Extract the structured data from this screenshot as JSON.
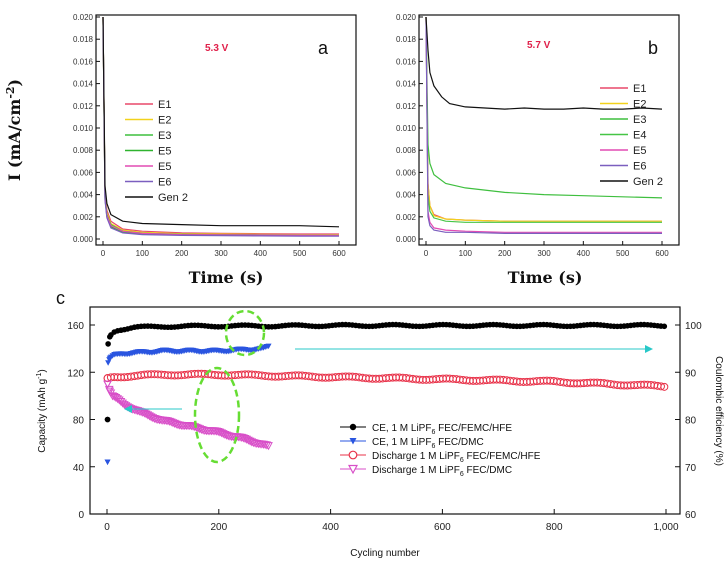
{
  "colors": {
    "E1": "#e8486a",
    "E2": "#f2d21c",
    "E3": "#3fbf3f",
    "E4": "#46c546",
    "E5": "#2fb32f",
    "E5b": "#e24bb3",
    "E6": "#7b5fbf",
    "Gen2": "#111111",
    "black": "#000000",
    "blue": "#2a55e0",
    "red": "#e8334a",
    "magenta": "#d84fc8",
    "cyan": "#28c8c8",
    "green": "#66dd33"
  },
  "chart_data": [
    {
      "id": "a",
      "type": "line",
      "panel_label": "a",
      "annotation": "5.3 V",
      "xlabel": "Time (s)",
      "ylabel": "I (mA/cm",
      "ylabel_sup": "-2",
      "ylabel_end": ")",
      "xlim": [
        0,
        600
      ],
      "ylim": [
        0,
        0.02
      ],
      "xticks": [
        0,
        100,
        200,
        300,
        400,
        500,
        600
      ],
      "yticks": [
        0.0,
        0.002,
        0.004,
        0.006,
        0.008,
        0.01,
        0.012,
        0.014,
        0.016,
        0.018,
        0.02
      ],
      "ytick_labels": [
        "0.000",
        "0.002",
        "0.004",
        "0.006",
        "0.008",
        "0.010",
        "0.012",
        "0.014",
        "0.016",
        "0.018",
        "0.020"
      ],
      "legend_position": "middle-left",
      "series": [
        {
          "name": "E1",
          "color_key": "E1",
          "x": [
            0,
            5,
            10,
            20,
            50,
            100,
            200,
            300,
            400,
            500,
            600
          ],
          "values": [
            0.02,
            0.0042,
            0.0026,
            0.0016,
            0.0009,
            0.0007,
            0.00055,
            0.0005,
            0.00048,
            0.00045,
            0.00045
          ]
        },
        {
          "name": "E2",
          "color_key": "E2",
          "x": [
            0,
            5,
            10,
            20,
            50,
            100,
            200,
            300,
            400,
            500,
            600
          ],
          "values": [
            0.02,
            0.004,
            0.0024,
            0.0014,
            0.0008,
            0.0006,
            0.00048,
            0.00045,
            0.00042,
            0.0004,
            0.0004
          ]
        },
        {
          "name": "E3",
          "color_key": "E3",
          "x": [
            0,
            5,
            10,
            20,
            50,
            100,
            200,
            300,
            400,
            500,
            600
          ],
          "values": [
            0.02,
            0.0038,
            0.0022,
            0.0013,
            0.0007,
            0.00052,
            0.00042,
            0.0004,
            0.00038,
            0.00036,
            0.00035
          ]
        },
        {
          "name": "E5",
          "color_key": "E5",
          "x": [
            0,
            5,
            10,
            20,
            50,
            100,
            200,
            300,
            400,
            500,
            600
          ],
          "values": [
            0.02,
            0.0036,
            0.002,
            0.0011,
            0.0006,
            0.00045,
            0.00038,
            0.00035,
            0.00033,
            0.00032,
            0.0003
          ]
        },
        {
          "name": "E5",
          "color_key": "E5b",
          "x": [
            0,
            5,
            10,
            20,
            50,
            100,
            200,
            300,
            400,
            500,
            600
          ],
          "values": [
            0.02,
            0.0037,
            0.0021,
            0.0012,
            0.0007,
            0.0005,
            0.0004,
            0.00038,
            0.00036,
            0.00035,
            0.00034
          ]
        },
        {
          "name": "E6",
          "color_key": "E6",
          "x": [
            0,
            5,
            10,
            20,
            50,
            100,
            200,
            300,
            400,
            500,
            600
          ],
          "values": [
            0.02,
            0.0035,
            0.0019,
            0.001,
            0.00055,
            0.0004,
            0.00032,
            0.0003,
            0.00028,
            0.00026,
            0.00025
          ]
        },
        {
          "name": "Gen 2",
          "color_key": "Gen2",
          "x": [
            0,
            5,
            10,
            20,
            50,
            100,
            200,
            300,
            400,
            500,
            600
          ],
          "values": [
            0.02,
            0.0048,
            0.0032,
            0.0022,
            0.0016,
            0.0014,
            0.0013,
            0.0012,
            0.0012,
            0.0012,
            0.0011
          ]
        }
      ]
    },
    {
      "id": "b",
      "type": "line",
      "panel_label": "b",
      "annotation": "5.7 V",
      "xlabel": "Time (s)",
      "ylabel": "",
      "xlim": [
        0,
        600
      ],
      "ylim": [
        0,
        0.02
      ],
      "xticks": [
        0,
        100,
        200,
        300,
        400,
        500,
        600
      ],
      "yticks": [
        0.0,
        0.002,
        0.004,
        0.006,
        0.008,
        0.01,
        0.012,
        0.014,
        0.016,
        0.018,
        0.02
      ],
      "ytick_labels": [
        "0.000",
        "0.002",
        "0.004",
        "0.006",
        "0.008",
        "0.010",
        "0.012",
        "0.014",
        "0.016",
        "0.018",
        "0.020"
      ],
      "legend_position": "middle-right",
      "series": [
        {
          "name": "E1",
          "color_key": "E1",
          "x": [
            0,
            5,
            10,
            20,
            50,
            100,
            200,
            300,
            400,
            500,
            600
          ],
          "values": [
            0.02,
            0.005,
            0.003,
            0.0022,
            0.0018,
            0.0017,
            0.0016,
            0.0016,
            0.0016,
            0.0016,
            0.0016
          ]
        },
        {
          "name": "E2",
          "color_key": "E2",
          "x": [
            0,
            5,
            10,
            20,
            50,
            100,
            200,
            300,
            400,
            500,
            600
          ],
          "values": [
            0.02,
            0.005,
            0.003,
            0.0021,
            0.0018,
            0.0017,
            0.0016,
            0.0016,
            0.0016,
            0.0016,
            0.0016
          ]
        },
        {
          "name": "E3",
          "color_key": "E3",
          "x": [
            0,
            5,
            10,
            20,
            50,
            100,
            200,
            300,
            400,
            500,
            600
          ],
          "values": [
            0.02,
            0.0085,
            0.0068,
            0.0058,
            0.005,
            0.0046,
            0.0042,
            0.004,
            0.0039,
            0.0038,
            0.0037
          ]
        },
        {
          "name": "E4",
          "color_key": "E4",
          "x": [
            0,
            5,
            10,
            20,
            50,
            100,
            200,
            300,
            400,
            500,
            600
          ],
          "values": [
            0.02,
            0.004,
            0.0025,
            0.0019,
            0.0016,
            0.0015,
            0.0015,
            0.0015,
            0.0015,
            0.0015,
            0.0015
          ]
        },
        {
          "name": "E5",
          "color_key": "E5b",
          "x": [
            0,
            5,
            10,
            20,
            50,
            100,
            200,
            300,
            400,
            500,
            600
          ],
          "values": [
            0.02,
            0.0025,
            0.0015,
            0.001,
            0.0008,
            0.0007,
            0.0006,
            0.0006,
            0.0006,
            0.0006,
            0.0006
          ]
        },
        {
          "name": "E6",
          "color_key": "E6",
          "x": [
            0,
            5,
            10,
            20,
            50,
            100,
            200,
            300,
            400,
            500,
            600
          ],
          "values": [
            0.02,
            0.002,
            0.0012,
            0.0008,
            0.0006,
            0.0006,
            0.0005,
            0.0005,
            0.0005,
            0.0005,
            0.0005
          ]
        },
        {
          "name": "Gen 2",
          "color_key": "Gen2",
          "x": [
            0,
            5,
            10,
            20,
            40,
            60,
            100,
            150,
            200,
            250,
            300,
            350,
            400,
            450,
            500,
            550,
            600
          ],
          "values": [
            0.02,
            0.017,
            0.015,
            0.0138,
            0.0128,
            0.0122,
            0.0119,
            0.0118,
            0.0117,
            0.0118,
            0.0117,
            0.0117,
            0.0118,
            0.0117,
            0.0117,
            0.0118,
            0.0117
          ]
        }
      ]
    },
    {
      "id": "c",
      "type": "scatter",
      "panel_label": "c",
      "xlabel": "Cycling number",
      "ylabel": "Capacity (mAh g",
      "ylabel_sup": "-1",
      "ylabel_end": ")",
      "y2label": "Coulombic efficiency (%)",
      "xlim": [
        0,
        1000
      ],
      "ylim": [
        0,
        160
      ],
      "y2lim": [
        60,
        100
      ],
      "xticks": [
        0,
        200,
        400,
        600,
        800,
        1000
      ],
      "xtick_labels": [
        "0",
        "200",
        "400",
        "600",
        "800",
        "1,000"
      ],
      "yticks": [
        0,
        40,
        80,
        120,
        160
      ],
      "y2ticks": [
        60,
        70,
        80,
        90,
        100
      ],
      "legend_position": "middle-right",
      "legend": [
        {
          "text": "CE, 1 M LiPF",
          "sub": "6",
          "rest": " FEC/FEMC/HFE",
          "color_key": "black",
          "marker": "circle"
        },
        {
          "text": "CE, 1 M LiPF",
          "sub": "6",
          "rest": " FEC/DMC",
          "color_key": "blue",
          "marker": "triangle-down"
        },
        {
          "text": "Discharge 1 M LiPF",
          "sub": "6",
          "rest": " FEC/FEMC/HFE",
          "color_key": "red",
          "marker": "circle-open"
        },
        {
          "text": "Discharge 1 M LiPF",
          "sub": "6",
          "rest": " FEC/DMC",
          "color_key": "magenta",
          "marker": "triangle-open"
        }
      ],
      "series": [
        {
          "name": "CE, 1 M LiPF6 FEC/FEMC/HFE",
          "axis": "right",
          "color_key": "black",
          "marker": "circle",
          "x": [
            1,
            2,
            5,
            10,
            20,
            50,
            100,
            200,
            300,
            400,
            500,
            600,
            700,
            800,
            900,
            1000
          ],
          "values": [
            80,
            96,
            97.5,
            98.5,
            99,
            99.5,
            99.7,
            99.8,
            99.8,
            99.9,
            99.9,
            99.9,
            99.9,
            99.9,
            99.9,
            99.9
          ]
        },
        {
          "name": "CE, 1 M LiPF6 FEC/DMC",
          "axis": "right",
          "color_key": "blue",
          "marker": "triangle-down",
          "x": [
            1,
            2,
            5,
            10,
            30,
            60,
            100,
            150,
            200,
            250,
            280,
            290
          ],
          "values": [
            71,
            92,
            93,
            93.5,
            94,
            94.2,
            94.5,
            94.5,
            94.5,
            94.8,
            95,
            95.5
          ]
        },
        {
          "name": "Discharge 1 M LiPF6 FEC/FEMC/HFE",
          "axis": "left",
          "color_key": "red",
          "marker": "circle-open",
          "x": [
            1,
            10,
            50,
            100,
            200,
            300,
            400,
            500,
            600,
            700,
            800,
            900,
            950,
            1000
          ],
          "values": [
            115,
            116,
            117,
            118,
            118,
            117,
            116,
            115,
            114,
            113,
            112,
            110,
            109,
            108
          ]
        },
        {
          "name": "Discharge 1 M LiPF6 FEC/DMC",
          "axis": "left",
          "color_key": "magenta",
          "marker": "triangle-open",
          "x": [
            1,
            5,
            10,
            30,
            60,
            100,
            150,
            200,
            250,
            290
          ],
          "values": [
            110,
            104,
            100,
            93,
            86,
            79,
            74,
            69,
            63,
            57
          ]
        }
      ]
    }
  ]
}
